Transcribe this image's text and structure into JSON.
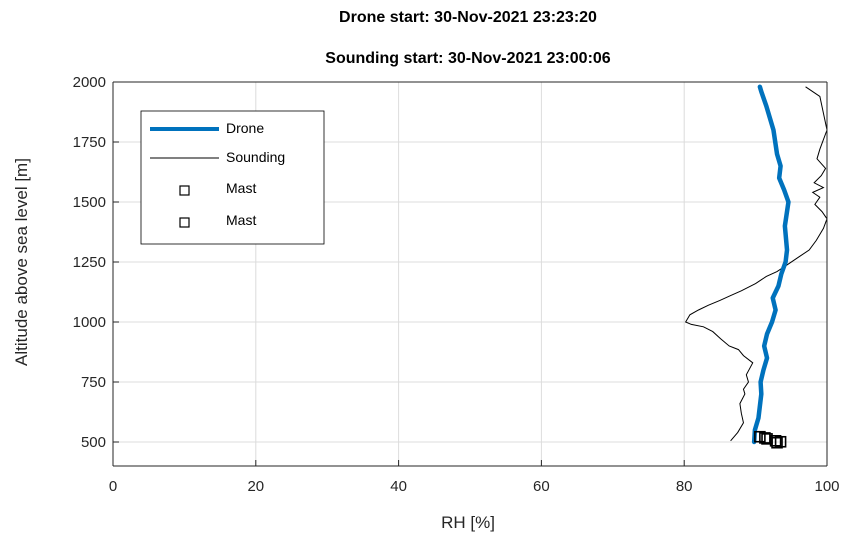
{
  "chart_data": {
    "type": "line",
    "title": "Drone start: 30-Nov-2021 23:23:20",
    "subtitle": "Sounding start: 30-Nov-2021 23:00:06",
    "xlabel": "RH [%]",
    "ylabel": "Altitude above sea level [m]",
    "xlim": [
      0,
      100
    ],
    "ylim": [
      400,
      2000
    ],
    "xticks": [
      0,
      20,
      40,
      60,
      80,
      100
    ],
    "yticks": [
      500,
      750,
      1000,
      1250,
      1500,
      1750,
      2000
    ],
    "grid": true,
    "legend_location": "top-left",
    "colors": {
      "drone": "#0072BD",
      "sounding": "#000000",
      "mast": "#000000"
    },
    "series": [
      {
        "name": "Drone",
        "style": "thick-line",
        "x": [
          89.8,
          89.9,
          90.4,
          90.6,
          90.8,
          90.7,
          91.1,
          91.6,
          91.2,
          91.6,
          92.3,
          92.8,
          92.4,
          93.2,
          93.6,
          94.2,
          94.4,
          94.1,
          94.6,
          94.0,
          93.3,
          93.5,
          93.0,
          92.5,
          91.5,
          90.8,
          90.6
        ],
        "y": [
          500,
          550,
          600,
          650,
          700,
          750,
          800,
          850,
          900,
          950,
          1000,
          1050,
          1100,
          1150,
          1200,
          1250,
          1300,
          1400,
          1500,
          1550,
          1600,
          1650,
          1700,
          1800,
          1900,
          1960,
          1980
        ]
      },
      {
        "name": "Sounding",
        "style": "thin-line",
        "x": [
          86.5,
          87.5,
          88.3,
          88.0,
          87.8,
          88.5,
          88.3,
          89.0,
          88.7,
          89.6,
          88.3,
          87.6,
          86.3,
          85.1,
          84.0,
          82.7,
          81.0,
          80.2,
          80.8,
          82.0,
          83.4,
          85.0,
          86.5,
          88.0,
          90.0,
          91.5,
          93.0,
          94.5,
          96.0,
          97.5,
          98.5,
          99.5,
          100.0,
          99.3,
          98.3,
          99.0,
          98.0,
          99.5,
          98.2,
          99.2,
          99.8,
          98.6,
          99.0,
          100.0,
          99.0,
          97.0
        ],
        "y": [
          505,
          540,
          580,
          620,
          660,
          700,
          720,
          750,
          780,
          830,
          860,
          885,
          900,
          930,
          960,
          980,
          990,
          1000,
          1030,
          1050,
          1070,
          1090,
          1110,
          1130,
          1160,
          1190,
          1210,
          1240,
          1270,
          1300,
          1340,
          1390,
          1430,
          1460,
          1490,
          1520,
          1540,
          1560,
          1580,
          1610,
          1640,
          1680,
          1720,
          1800,
          1940,
          1980
        ]
      },
      {
        "name": "Mast",
        "style": "square-marker",
        "x": [
          90.6,
          91.3,
          91.6
        ],
        "y": [
          522,
          517,
          513
        ]
      },
      {
        "name": "Mast",
        "style": "square-marker",
        "x": [
          92.8,
          93.5,
          93.0
        ],
        "y": [
          505,
          501,
          497
        ]
      }
    ]
  }
}
